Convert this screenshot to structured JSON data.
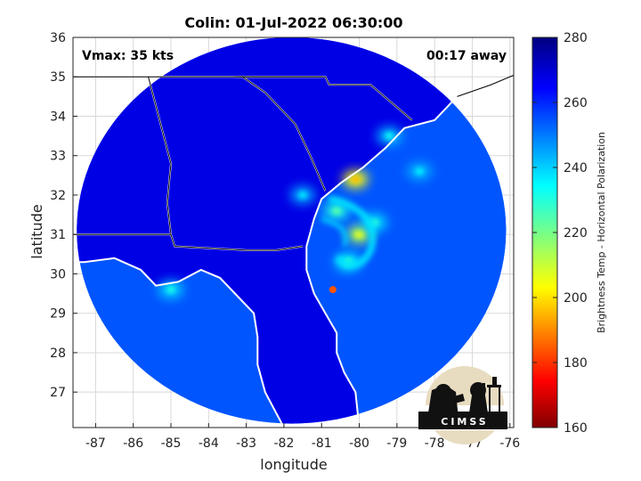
{
  "chart_data": {
    "type": "heatmap",
    "title": "Colin: 01-Jul-2022 06:30:00",
    "xlabel": "longitude",
    "ylabel": "latitude",
    "xlim": [
      -87.6,
      -75.9
    ],
    "ylim": [
      26.1,
      36.0
    ],
    "xticks": [
      "-87",
      "-86",
      "-85",
      "-84",
      "-83",
      "-82",
      "-81",
      "-80",
      "-79",
      "-78",
      "-77",
      "-76"
    ],
    "xtick_values": [
      -87,
      -86,
      -85,
      -84,
      -83,
      -82,
      -81,
      -80,
      -79,
      -78,
      -77,
      -76
    ],
    "yticks": [
      "27",
      "28",
      "29",
      "30",
      "31",
      "32",
      "33",
      "34",
      "35",
      "36"
    ],
    "ytick_values": [
      27,
      28,
      29,
      30,
      31,
      32,
      33,
      34,
      35,
      36
    ],
    "grid": true,
    "annotations": {
      "vmax": "Vmax: 35 kts",
      "time_away": "00:17 away"
    },
    "colorbar": {
      "label": "Brightness Temp - Horizontal Polarization",
      "min": 160,
      "max": 280,
      "ticks": [
        "160",
        "180",
        "200",
        "220",
        "240",
        "260",
        "280"
      ],
      "tick_values": [
        160,
        180,
        200,
        220,
        240,
        260,
        280
      ],
      "colormap": "jet"
    },
    "swath": {
      "center_lon": -81.8,
      "center_lat": 31.1,
      "radius_deg_x": 5.7,
      "radius_deg_y": 4.9
    },
    "storm_center": {
      "lon": -80.7,
      "lat": 29.6,
      "value": 185
    },
    "features": [
      {
        "lon": -80.1,
        "lat": 32.4,
        "value": 205
      },
      {
        "lon": -80.0,
        "lat": 31.0,
        "value": 215
      },
      {
        "lon": -80.6,
        "lat": 31.6,
        "value": 232
      },
      {
        "lon": -79.6,
        "lat": 31.3,
        "value": 238
      },
      {
        "lon": -80.3,
        "lat": 30.3,
        "value": 235
      },
      {
        "lon": -79.2,
        "lat": 33.5,
        "value": 242
      },
      {
        "lon": -78.4,
        "lat": 32.6,
        "value": 244
      },
      {
        "lon": -85.0,
        "lat": 29.6,
        "value": 240
      },
      {
        "lon": -81.5,
        "lat": 32.0,
        "value": 245
      }
    ],
    "background_values": {
      "land": 268,
      "ocean": 255
    }
  },
  "logo": {
    "text": "CIMSS"
  }
}
